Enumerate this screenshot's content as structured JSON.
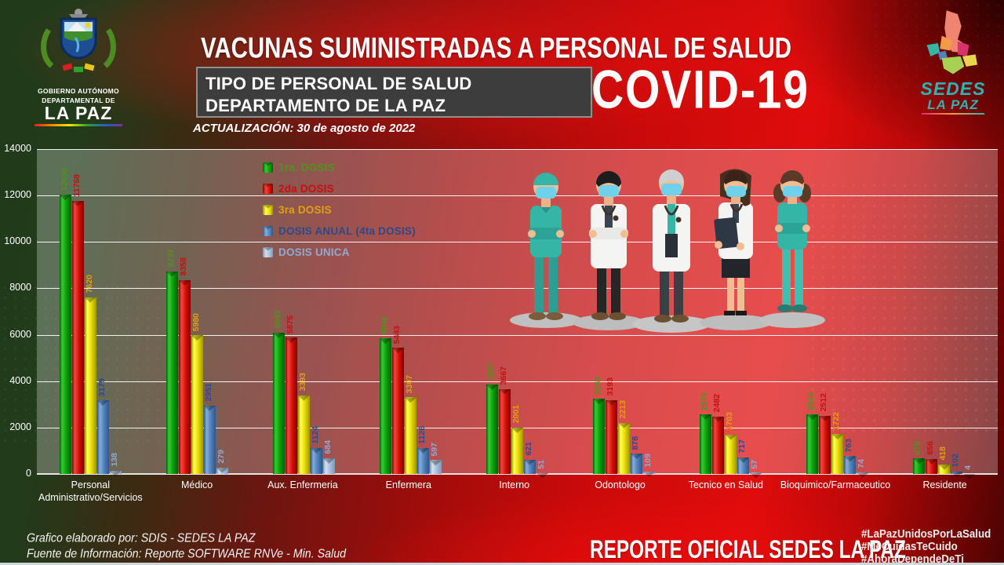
{
  "header": {
    "title": "VACUNAS SUMINISTRADAS A PERSONAL DE SALUD",
    "box_line1": "TIPO DE PERSONAL DE SALUD",
    "box_line2": "DEPARTAMENTO DE LA PAZ",
    "covid": "COVID-19",
    "update": "ACTUALIZACIÓN: 30 de agosto de 2022"
  },
  "logos": {
    "left": {
      "line1": "GOBIERNO AUTÓNOMO",
      "line2": "DEPARTAMENTAL DE",
      "line3": "LA PAZ"
    },
    "right": {
      "line1": "SEDES",
      "line2": "LA PAZ"
    }
  },
  "chart_data": {
    "type": "bar",
    "title": "VACUNAS SUMINISTRADAS A PERSONAL DE SALUD",
    "xlabel": "",
    "ylabel": "",
    "ylim": [
      0,
      14000
    ],
    "yticks": [
      0,
      2000,
      4000,
      6000,
      8000,
      10000,
      12000,
      14000
    ],
    "grid": true,
    "legend_position": "inside-top-left",
    "categories": [
      "Personal Administrativo/Servicios",
      "Médico",
      "Aux. Enfermeria",
      "Enfermera",
      "Interno",
      "Odontologo",
      "Tecnico en Salud",
      "Bioquimico/Farmaceutico",
      "Residente"
    ],
    "series": [
      {
        "name": "1ra. DOSIS",
        "color": "#0b9e0b",
        "color_light": "#33cc33",
        "color_dark": "#045f04",
        "text_color": "#4f941c",
        "values": [
          12036,
          8737,
          6093,
          5840,
          3857,
          3243,
          2574,
          2564,
          675
        ]
      },
      {
        "name": "2da DOSIS",
        "color": "#d40f08",
        "color_light": "#f4473c",
        "color_dark": "#7e0502",
        "text_color": "#c41010",
        "values": [
          11768,
          8358,
          5875,
          5443,
          3667,
          3193,
          2482,
          2512,
          656
        ]
      },
      {
        "name": "3ra DOSIS",
        "color": "#e8dc00",
        "color_light": "#ffff55",
        "color_dark": "#9c9400",
        "text_color": "#e0a010",
        "values": [
          7620,
          5980,
          3393,
          3307,
          2001,
          2213,
          1703,
          1722,
          418
        ]
      },
      {
        "name": "DOSIS ANUAL (4ta DOSIS)",
        "color": "#4f81bd",
        "color_light": "#85aed6",
        "color_dark": "#2f5788",
        "text_color": "#2b4a8c",
        "values": [
          3179,
          2951,
          1124,
          1126,
          621,
          878,
          717,
          763,
          102
        ]
      },
      {
        "name": "DOSIS UNICA",
        "color": "#a9bedd",
        "color_light": "#d4dfee",
        "color_dark": "#8096b8",
        "text_color": "#93a9cf",
        "values": [
          138,
          279,
          684,
          597,
          51,
          109,
          57,
          74,
          4
        ]
      }
    ]
  },
  "footer": {
    "credit_line1": "Grafico elaborado por: SDIS - SEDES LA PAZ",
    "credit_line2": "Fuente de Información: Reporte SOFTWARE RNVe - Min. Salud",
    "report": "REPORTE OFICIAL SEDES LA PAZ",
    "hashtags": [
      "#LaPazUnidosPorLaSalud",
      "#MeCuidasTeCuido",
      "#AhoraDependeDeTi"
    ]
  }
}
